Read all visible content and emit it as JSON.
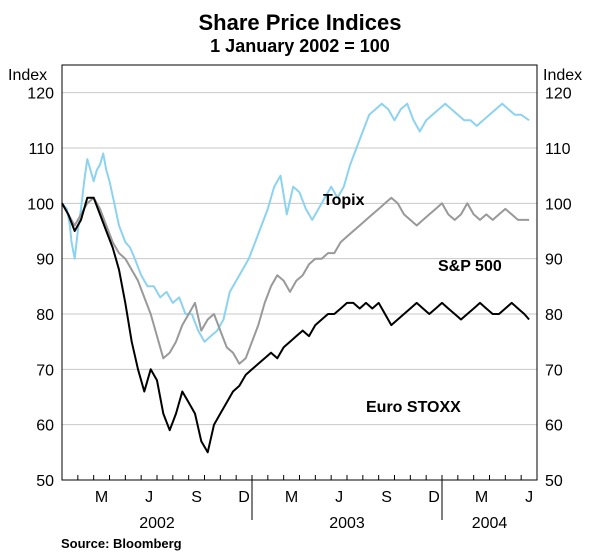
{
  "chart_data": {
    "type": "line",
    "title": "Share Price Indices",
    "subtitle": "1 January 2002 = 100",
    "ylabel_left": "Index",
    "ylabel_right": "Index",
    "ylim": [
      50,
      125
    ],
    "yticks": [
      50,
      60,
      70,
      80,
      90,
      100,
      110,
      120
    ],
    "x_month_ticks": [
      "M",
      "J",
      "S",
      "D",
      "M",
      "J",
      "S",
      "D",
      "M",
      "J"
    ],
    "x_year_labels": [
      "2002",
      "2003",
      "2004"
    ],
    "source": "Source: Bloomberg",
    "colors": {
      "topix": "#8dd3f0",
      "sp500": "#999999",
      "eurostoxx": "#000000",
      "frame": "#000000"
    },
    "series": [
      {
        "name": "Topix",
        "label": "Topix",
        "x": [
          0,
          0.3,
          0.5,
          0.6,
          0.8,
          1.0,
          1.2,
          1.4,
          1.6,
          1.8,
          2.0,
          2.2,
          2.4,
          2.6,
          2.8,
          3.0,
          3.3,
          3.6,
          4.0,
          4.3,
          4.6,
          5.0,
          5.4,
          5.8,
          6.2,
          6.6,
          7.0,
          7.4,
          7.8,
          8.2,
          8.6,
          9.0,
          9.4,
          9.8,
          10.2,
          10.6,
          11.0,
          11.4,
          11.8,
          12.2,
          12.6,
          13.0,
          13.4,
          13.8,
          14.2,
          14.6,
          15.0,
          15.4,
          15.8,
          16.2,
          16.6,
          17.0,
          17.4,
          17.8,
          18.2,
          18.6,
          19.0,
          19.4,
          19.8,
          20.2,
          20.6,
          21.0,
          21.4,
          21.8,
          22.2,
          22.6,
          23.0,
          23.4,
          23.8,
          24.2,
          24.6,
          25.0,
          25.4,
          25.8,
          26.2,
          26.6,
          27.0,
          27.4,
          27.8,
          28.2,
          28.6,
          29.0,
          29.5
        ],
        "values": [
          100,
          99,
          96,
          93,
          90,
          95,
          99,
          104,
          108,
          106,
          104,
          106,
          107,
          109,
          106,
          104,
          100,
          96,
          93,
          92,
          90,
          87,
          85,
          85,
          83,
          84,
          82,
          83,
          80,
          80,
          77,
          75,
          76,
          77,
          79,
          84,
          86,
          88,
          90,
          93,
          96,
          99,
          103,
          105,
          98,
          103,
          102,
          99,
          97,
          99,
          101,
          103,
          101,
          103,
          107,
          110,
          113,
          116,
          117,
          118,
          117,
          115,
          117,
          118,
          115,
          113,
          115,
          116,
          117,
          118,
          117,
          116,
          115,
          115,
          114,
          115,
          116,
          117,
          118,
          117,
          116,
          116,
          115
        ]
      },
      {
        "name": "S&P 500",
        "label": "S&P 500",
        "x": [
          0,
          0.4,
          0.8,
          1.2,
          1.6,
          2.0,
          2.4,
          2.8,
          3.2,
          3.6,
          4.0,
          4.4,
          4.8,
          5.2,
          5.6,
          6.0,
          6.4,
          6.8,
          7.2,
          7.6,
          8.0,
          8.4,
          8.8,
          9.2,
          9.6,
          10.0,
          10.4,
          10.8,
          11.2,
          11.6,
          12.0,
          12.4,
          12.8,
          13.2,
          13.6,
          14.0,
          14.4,
          14.8,
          15.2,
          15.6,
          16.0,
          16.4,
          16.8,
          17.2,
          17.6,
          18.0,
          18.4,
          18.8,
          19.2,
          19.6,
          20.0,
          20.4,
          20.8,
          21.2,
          21.6,
          22.0,
          22.4,
          22.8,
          23.2,
          23.6,
          24.0,
          24.4,
          24.8,
          25.2,
          25.6,
          26.0,
          26.4,
          26.8,
          27.2,
          27.6,
          28.0,
          28.4,
          28.8,
          29.2,
          29.5
        ],
        "values": [
          100,
          98,
          96,
          98,
          100,
          101,
          99,
          96,
          93,
          91,
          90,
          88,
          86,
          83,
          80,
          76,
          72,
          73,
          75,
          78,
          80,
          82,
          77,
          79,
          80,
          77,
          74,
          73,
          71,
          72,
          75,
          78,
          82,
          85,
          87,
          86,
          84,
          86,
          87,
          89,
          90,
          90,
          91,
          91,
          93,
          94,
          95,
          96,
          97,
          98,
          99,
          100,
          101,
          100,
          98,
          97,
          96,
          97,
          98,
          99,
          100,
          98,
          97,
          98,
          100,
          98,
          97,
          98,
          97,
          98,
          99,
          98,
          97,
          97,
          97
        ]
      },
      {
        "name": "Euro STOXX",
        "label": "Euro STOXX",
        "x": [
          0,
          0.4,
          0.8,
          1.2,
          1.6,
          2.0,
          2.4,
          2.8,
          3.2,
          3.6,
          4.0,
          4.4,
          4.8,
          5.2,
          5.6,
          6.0,
          6.4,
          6.8,
          7.2,
          7.6,
          8.0,
          8.4,
          8.8,
          9.2,
          9.6,
          10.0,
          10.4,
          10.8,
          11.2,
          11.6,
          12.0,
          12.4,
          12.8,
          13.2,
          13.6,
          14.0,
          14.4,
          14.8,
          15.2,
          15.6,
          16.0,
          16.4,
          16.8,
          17.2,
          17.6,
          18.0,
          18.4,
          18.8,
          19.2,
          19.6,
          20.0,
          20.4,
          20.8,
          21.2,
          21.6,
          22.0,
          22.4,
          22.8,
          23.2,
          23.6,
          24.0,
          24.4,
          24.8,
          25.2,
          25.6,
          26.0,
          26.4,
          26.8,
          27.2,
          27.6,
          28.0,
          28.4,
          28.8,
          29.2,
          29.5
        ],
        "values": [
          100,
          98,
          95,
          97,
          101,
          101,
          98,
          95,
          92,
          88,
          82,
          75,
          70,
          66,
          70,
          68,
          62,
          59,
          62,
          66,
          64,
          62,
          57,
          55,
          60,
          62,
          64,
          66,
          67,
          69,
          70,
          71,
          72,
          73,
          72,
          74,
          75,
          76,
          77,
          76,
          78,
          79,
          80,
          80,
          81,
          82,
          82,
          81,
          82,
          81,
          82,
          80,
          78,
          79,
          80,
          81,
          82,
          81,
          80,
          81,
          82,
          81,
          80,
          79,
          80,
          81,
          82,
          81,
          80,
          80,
          81,
          82,
          81,
          80,
          79
        ]
      }
    ]
  }
}
